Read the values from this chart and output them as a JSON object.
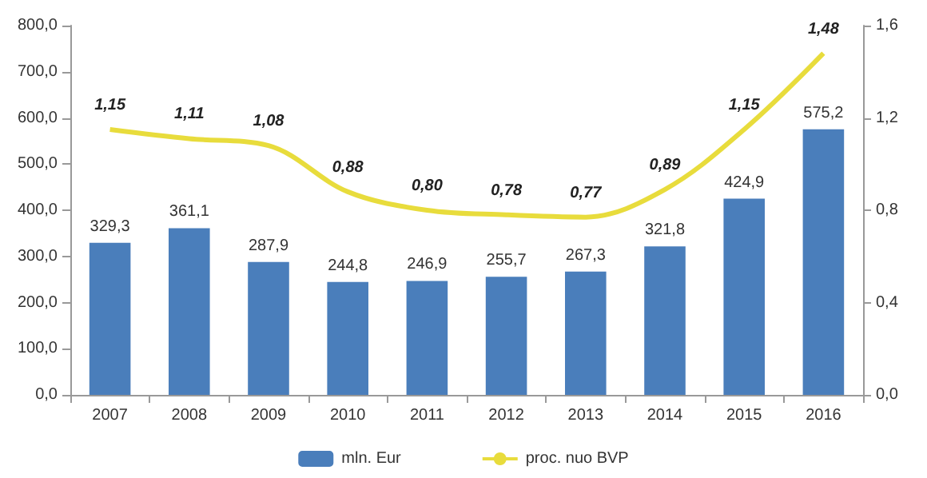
{
  "chart_data": {
    "type": "bar",
    "categories": [
      "2007",
      "2008",
      "2009",
      "2010",
      "2011",
      "2012",
      "2013",
      "2014",
      "2015",
      "2016"
    ],
    "series": [
      {
        "name": "mln. Eur",
        "color": "#4a7ebb",
        "values": [
          329.3,
          361.1,
          287.9,
          244.8,
          246.9,
          255.7,
          267.3,
          321.8,
          424.9,
          575.2
        ],
        "value_labels": [
          "329,3",
          "361,1",
          "287,9",
          "244,8",
          "246,9",
          "255,7",
          "267,3",
          "321,8",
          "424,9",
          "575,2"
        ]
      },
      {
        "name": "proc. nuo BVP",
        "type": "line",
        "axis": "y2",
        "color": "#e8dc3c",
        "values": [
          1.15,
          1.11,
          1.08,
          0.88,
          0.8,
          0.78,
          0.77,
          0.89,
          1.15,
          1.48
        ],
        "value_labels": [
          "1,15",
          "1,11",
          "1,08",
          "0,88",
          "0,80",
          "0,78",
          "0,77",
          "0,89",
          "1,15",
          "1,48"
        ]
      }
    ],
    "ylim": [
      0,
      800
    ],
    "yticks": [
      {
        "value": 0,
        "label": "0,0"
      },
      {
        "value": 100,
        "label": "100,0"
      },
      {
        "value": 200,
        "label": "200,0"
      },
      {
        "value": 300,
        "label": "300,0"
      },
      {
        "value": 400,
        "label": "400,0"
      },
      {
        "value": 500,
        "label": "500,0"
      },
      {
        "value": 600,
        "label": "600,0"
      },
      {
        "value": 700,
        "label": "700,0"
      },
      {
        "value": 800,
        "label": "800,0"
      }
    ],
    "y2lim": [
      0,
      1.6
    ],
    "y2ticks": [
      {
        "value": 0,
        "label": "0,0"
      },
      {
        "value": 0.4,
        "label": "0,4"
      },
      {
        "value": 0.8,
        "label": "0,8"
      },
      {
        "value": 1.2,
        "label": "1,2"
      },
      {
        "value": 1.6,
        "label": "1,6"
      }
    ],
    "legend": "bottom",
    "grid": false,
    "marker": "none"
  }
}
